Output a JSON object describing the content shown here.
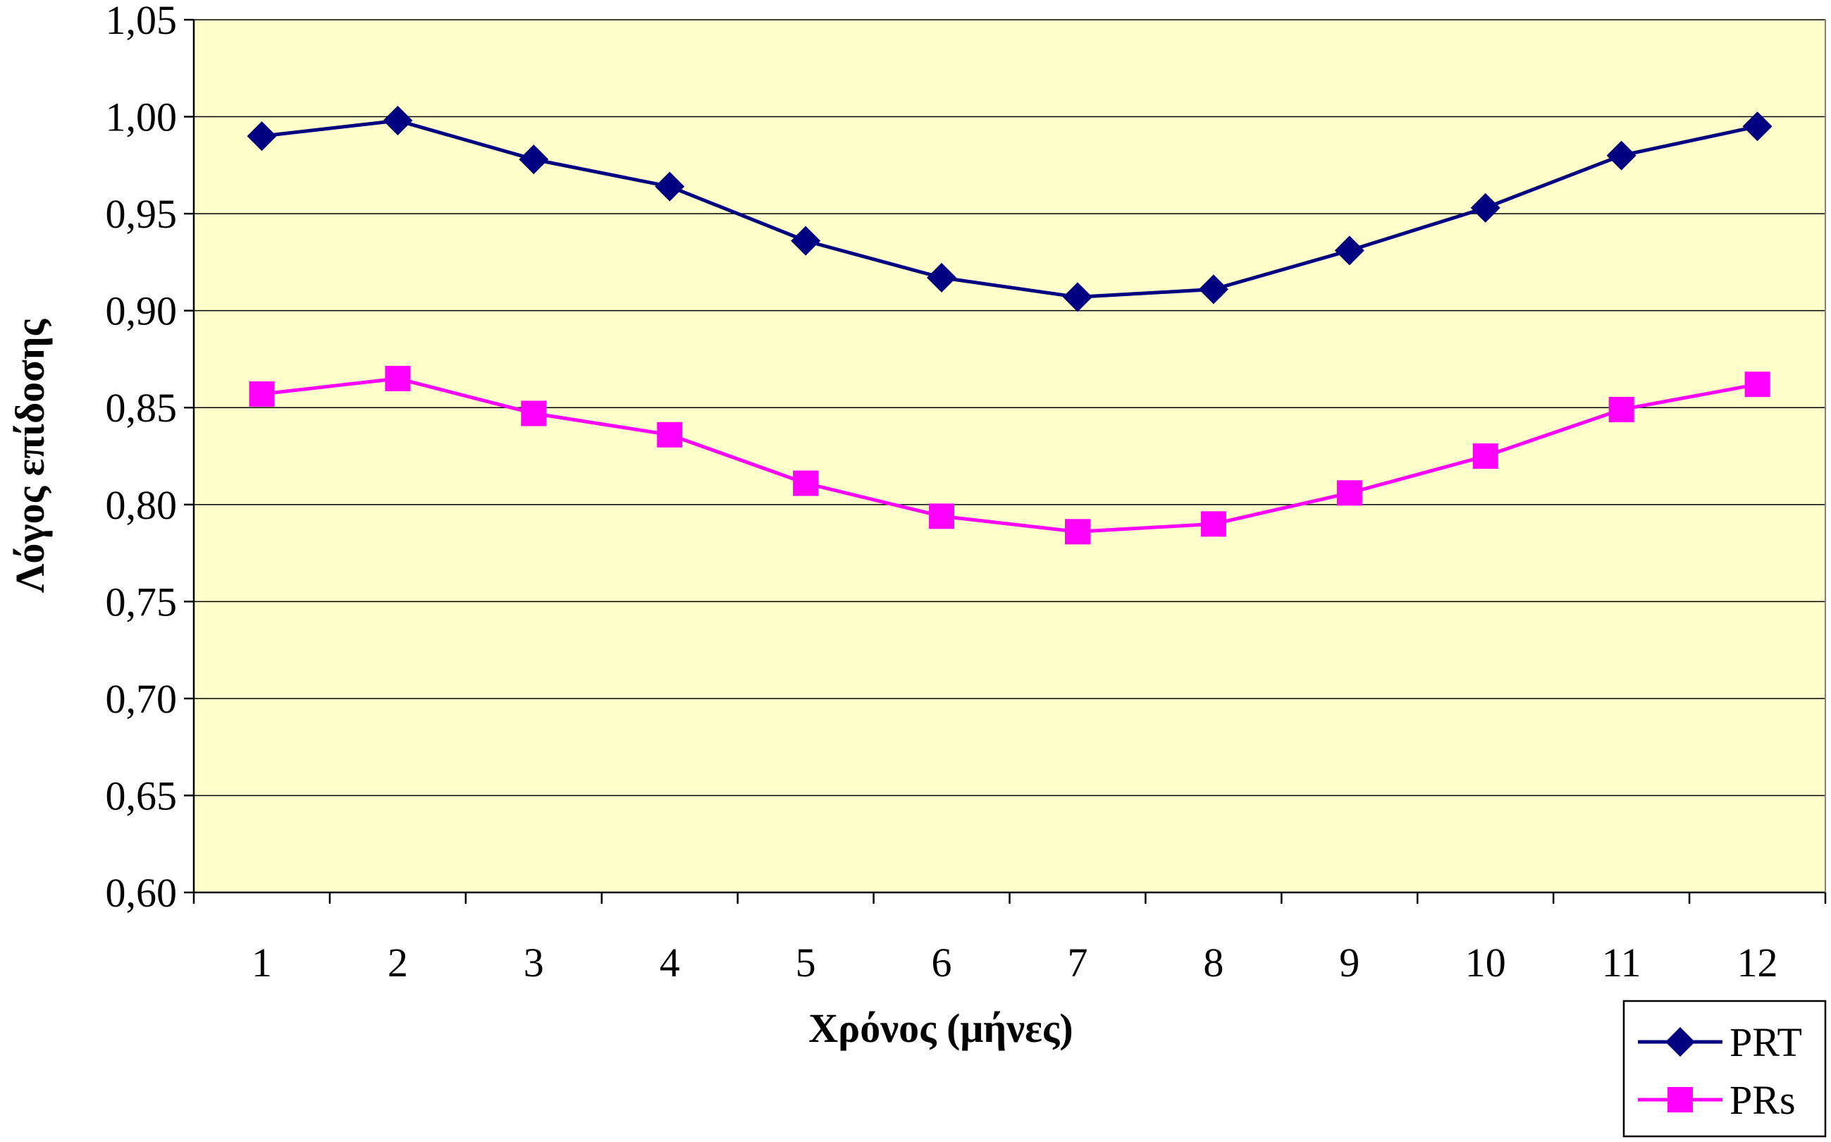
{
  "chart_data": {
    "type": "line",
    "title": "",
    "xlabel": "Χρόνος (μήνες)",
    "ylabel": "Λόγος επίδοσης",
    "categories": [
      "1",
      "2",
      "3",
      "4",
      "5",
      "6",
      "7",
      "8",
      "9",
      "10",
      "11",
      "12"
    ],
    "ylim": [
      0.6,
      1.05
    ],
    "yticks": [
      0.6,
      0.65,
      0.7,
      0.75,
      0.8,
      0.85,
      0.9,
      0.95,
      1.0,
      1.05
    ],
    "ytick_labels": [
      "0,60",
      "0,65",
      "0,70",
      "0,75",
      "0,80",
      "0,85",
      "0,90",
      "0,95",
      "1,00",
      "1,05"
    ],
    "grid": "horizontal",
    "legend_position": "bottom-right",
    "plot_background": "#ffffcc",
    "series": [
      {
        "name": "PRT",
        "color": "#000080",
        "marker": "diamond",
        "values": [
          0.99,
          0.998,
          0.978,
          0.964,
          0.936,
          0.917,
          0.907,
          0.911,
          0.931,
          0.953,
          0.98,
          0.995
        ]
      },
      {
        "name": "PRs",
        "color": "#ff00ff",
        "marker": "square",
        "values": [
          0.857,
          0.865,
          0.847,
          0.836,
          0.811,
          0.794,
          0.786,
          0.79,
          0.806,
          0.825,
          0.849,
          0.862
        ]
      }
    ]
  }
}
